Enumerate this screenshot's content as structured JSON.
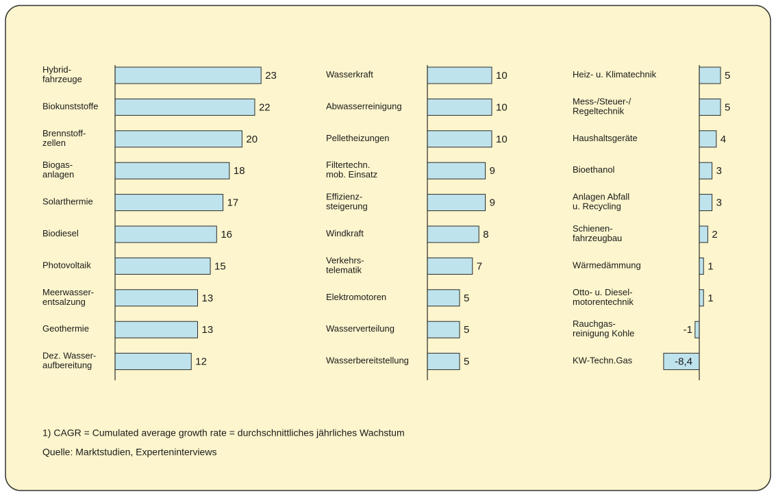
{
  "chart_data": [
    {
      "type": "barh",
      "categories": [
        "Hybrid-\nfahrzeuge",
        "Biokunststoffe",
        "Brennstoff-\nzellen",
        "Biogas-\nanlagen",
        "Solarthermie",
        "Biodiesel",
        "Photovoltaik",
        "Meerwasser-\nentsalzung",
        "Geothermie",
        "Dez. Wasser-\naufbereitung"
      ],
      "values": [
        23,
        22,
        20,
        18,
        17,
        16,
        15,
        13,
        13,
        12
      ],
      "color": "#bfe3ec",
      "xlim": [
        0,
        25
      ]
    },
    {
      "type": "barh",
      "categories": [
        "Wasserkraft",
        "Abwasserreinigung",
        "Pelletheizungen",
        "Filtertechn.\nmob. Einsatz",
        "Effizienz-\nsteigerung",
        "Windkraft",
        "Verkehrs-\ntelematik",
        "Elektromotoren",
        "Wasserverteilung",
        "Wasserbereitstellung"
      ],
      "values": [
        10,
        10,
        10,
        9,
        9,
        8,
        7,
        5,
        5,
        5
      ],
      "color": "#bfe3ec",
      "xlim": [
        0,
        25
      ]
    },
    {
      "type": "barh",
      "categories": [
        "Heiz- u. Klimatechnik",
        "Mess-/Steuer-/\nRegeltechnik",
        "Haushaltsgeräte",
        "Bioethanol",
        "Anlagen Abfall\nu. Recycling",
        "Schienen-\nfahrzeugbau",
        "Wärmedämmung",
        "Otto- u. Diesel-\nmotorentechnik",
        "Rauchgas-\nreinigung Kohle",
        "KW-Techn.Gas"
      ],
      "values": [
        5,
        5,
        4,
        3,
        3,
        2,
        1,
        1,
        -1,
        -8.4
      ],
      "value_labels": [
        "5",
        "5",
        "4",
        "3",
        "3",
        "2",
        "1",
        "1",
        "-1",
        "-8,4"
      ],
      "color": "#bfe3ec",
      "xlim": [
        -10,
        6
      ]
    }
  ],
  "footnotes": [
    "1) CAGR = Cumulated average growth rate = durchschnittliches jährliches Wachstum",
    "Quelle: Marktstudien, Experteninterviews"
  ]
}
